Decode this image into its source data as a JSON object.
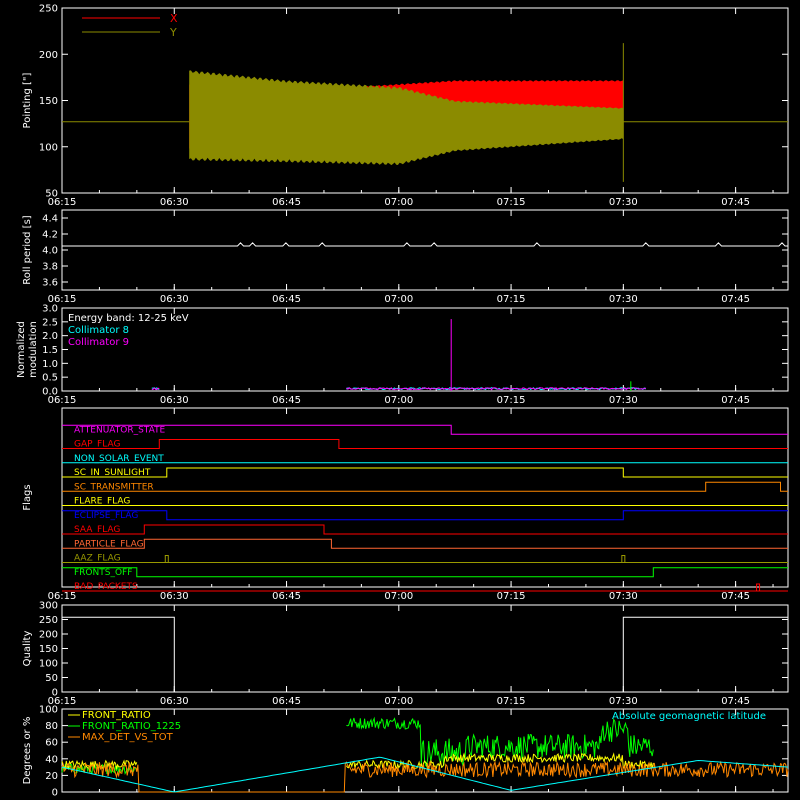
{
  "chart_data": [
    {
      "type": "line",
      "ylabel": "Pointing [\"]",
      "ylim": [
        50,
        250
      ],
      "yticks": [
        50,
        100,
        150,
        200,
        250
      ],
      "series": [
        {
          "name": "X",
          "color": "#ff0000",
          "baseline": 127,
          "start": "06:32",
          "end": "07:30",
          "envelope": [
            [
              6.533,
              98,
              170
            ],
            [
              6.75,
              106,
              160
            ],
            [
              7.0,
              118,
              168
            ],
            [
              7.125,
              122,
              172
            ],
            [
              7.5,
              126,
              172
            ]
          ]
        },
        {
          "name": "Y",
          "color": "#8b8b00",
          "baseline": 127,
          "start": "06:32",
          "end": "07:30",
          "envelope": [
            [
              6.533,
              85,
              183
            ],
            [
              6.75,
              83,
              172
            ],
            [
              7.0,
              80,
              165
            ],
            [
              7.125,
              95,
              150
            ],
            [
              7.5,
              108,
              142
            ]
          ]
        }
      ],
      "spike": {
        "time": "07:30",
        "low": 62,
        "high": 212
      }
    },
    {
      "type": "line",
      "ylabel": "Roll period [s]",
      "ylim": [
        3.5,
        4.5
      ],
      "yticks": [
        3.6,
        3.8,
        4.0,
        4.2,
        4.4
      ],
      "value": 4.05,
      "color": "#ffffff"
    },
    {
      "type": "line",
      "ylabel": "Normalized modulation",
      "ylabel_lines": [
        "Normalized",
        "modulation"
      ],
      "ylim": [
        0,
        3.0
      ],
      "yticks": [
        0.0,
        0.5,
        1.0,
        1.5,
        2.0,
        2.5,
        3.0
      ],
      "annotation": "Energy band: 12-25 keV",
      "series": [
        {
          "name": "Collimator 8",
          "color": "#00ffff"
        },
        {
          "name": "Collimator 9",
          "color": "#ff00ff"
        }
      ],
      "spikes": [
        {
          "time": "07:07",
          "value": 2.6,
          "color": "#ff00ff"
        },
        {
          "time": "07:31",
          "value": 0.35,
          "color": "#00ff00"
        }
      ],
      "active": [
        [
          "06:27",
          "06:28"
        ],
        [
          "06:53",
          "07:33"
        ]
      ]
    },
    {
      "type": "line",
      "ylabel": "Flags",
      "flags": [
        {
          "name": "ATTENUATOR_STATE",
          "color": "#ff00ff",
          "segments": [
            [
              "06:15",
              "07:07",
              1
            ],
            [
              "07:07",
              "07:52",
              0
            ]
          ]
        },
        {
          "name": "GAP_FLAG",
          "color": "#ff0000",
          "segments": [
            [
              "06:15",
              "06:28",
              0
            ],
            [
              "06:28",
              "06:52",
              1
            ],
            [
              "06:52",
              "07:52",
              0
            ]
          ]
        },
        {
          "name": "NON_SOLAR_EVENT",
          "color": "#00ffff",
          "segments": [
            [
              "06:15",
              "07:52",
              0
            ]
          ]
        },
        {
          "name": "SC_IN_SUNLIGHT",
          "color": "#ffff00",
          "segments": [
            [
              "06:15",
              "06:29",
              0
            ],
            [
              "06:29",
              "07:30",
              1
            ],
            [
              "07:30",
              "07:52",
              0
            ]
          ]
        },
        {
          "name": "SC_TRANSMITTER",
          "color": "#ff8800",
          "segments": [
            [
              "06:15",
              "07:41",
              0
            ],
            [
              "07:41",
              "07:51",
              1
            ],
            [
              "07:51",
              "07:52",
              0
            ]
          ]
        },
        {
          "name": "FLARE_FLAG",
          "color": "#ffff00",
          "segments": [
            [
              "06:15",
              "07:52",
              0
            ]
          ]
        },
        {
          "name": "ECLIPSE_FLAG",
          "color": "#0000ff",
          "segments": [
            [
              "06:15",
              "06:29",
              1
            ],
            [
              "06:29",
              "07:30",
              0
            ],
            [
              "07:30",
              "07:52",
              1
            ]
          ]
        },
        {
          "name": "SAA_FLAG",
          "color": "#ff0000",
          "segments": [
            [
              "06:15",
              "06:26",
              0
            ],
            [
              "06:26",
              "06:50",
              1
            ],
            [
              "06:50",
              "07:52",
              0
            ]
          ]
        },
        {
          "name": "PARTICLE_FLAG",
          "color": "#ff6633",
          "segments": [
            [
              "06:15",
              "06:26",
              0
            ],
            [
              "06:26",
              "06:51",
              1
            ],
            [
              "06:51",
              "07:52",
              0
            ]
          ]
        },
        {
          "name": "AAZ_FLAG",
          "color": "#999900",
          "segments": [
            [
              "06:15",
              "07:52",
              0
            ]
          ],
          "pulses": [
            "06:29",
            "07:30"
          ]
        },
        {
          "name": "FRONTS_OFF",
          "color": "#00ff00",
          "segments": [
            [
              "06:15",
              "06:25",
              1
            ],
            [
              "06:25",
              "07:34",
              0
            ],
            [
              "07:34",
              "07:52",
              1
            ]
          ]
        },
        {
          "name": "BAD_PACKETS",
          "color": "#ff0000",
          "segments": [
            [
              "06:15",
              "07:52",
              0
            ]
          ],
          "pulses": [
            "07:48"
          ]
        }
      ]
    },
    {
      "type": "line",
      "ylabel": "Quality",
      "ylim": [
        0,
        300
      ],
      "yticks": [
        0,
        50,
        100,
        150,
        200,
        250,
        300
      ],
      "segments": [
        [
          "06:15",
          "06:30",
          258
        ],
        [
          "06:30",
          "07:30",
          0
        ],
        [
          "07:30",
          "07:52",
          258
        ]
      ],
      "color": "#ffffff"
    },
    {
      "type": "line",
      "ylabel": "Degrees or %",
      "ylim": [
        0,
        100
      ],
      "yticks": [
        0,
        20,
        40,
        60,
        80,
        100
      ],
      "annotation": "Absolute geomagnetic latitude",
      "series": [
        {
          "name": "FRONT_RATIO",
          "color": "#ffff00"
        },
        {
          "name": "FRONT_RATIO_1225",
          "color": "#00ff00"
        },
        {
          "name": "MAX_DET_VS_TOT",
          "color": "#ff8800"
        },
        {
          "name": "",
          "color": "#00ffff",
          "latitude": [
            [
              6.25,
              30
            ],
            [
              6.5,
              0
            ],
            [
              6.958,
              42
            ],
            [
              7.25,
              2
            ],
            [
              7.667,
              38
            ],
            [
              7.867,
              30
            ]
          ]
        }
      ]
    }
  ],
  "xaxis": {
    "start": "06:15",
    "end": "07:52",
    "ticks": [
      "06:15",
      "06:30",
      "06:45",
      "07:00",
      "07:15",
      "07:30",
      "07:45"
    ]
  }
}
